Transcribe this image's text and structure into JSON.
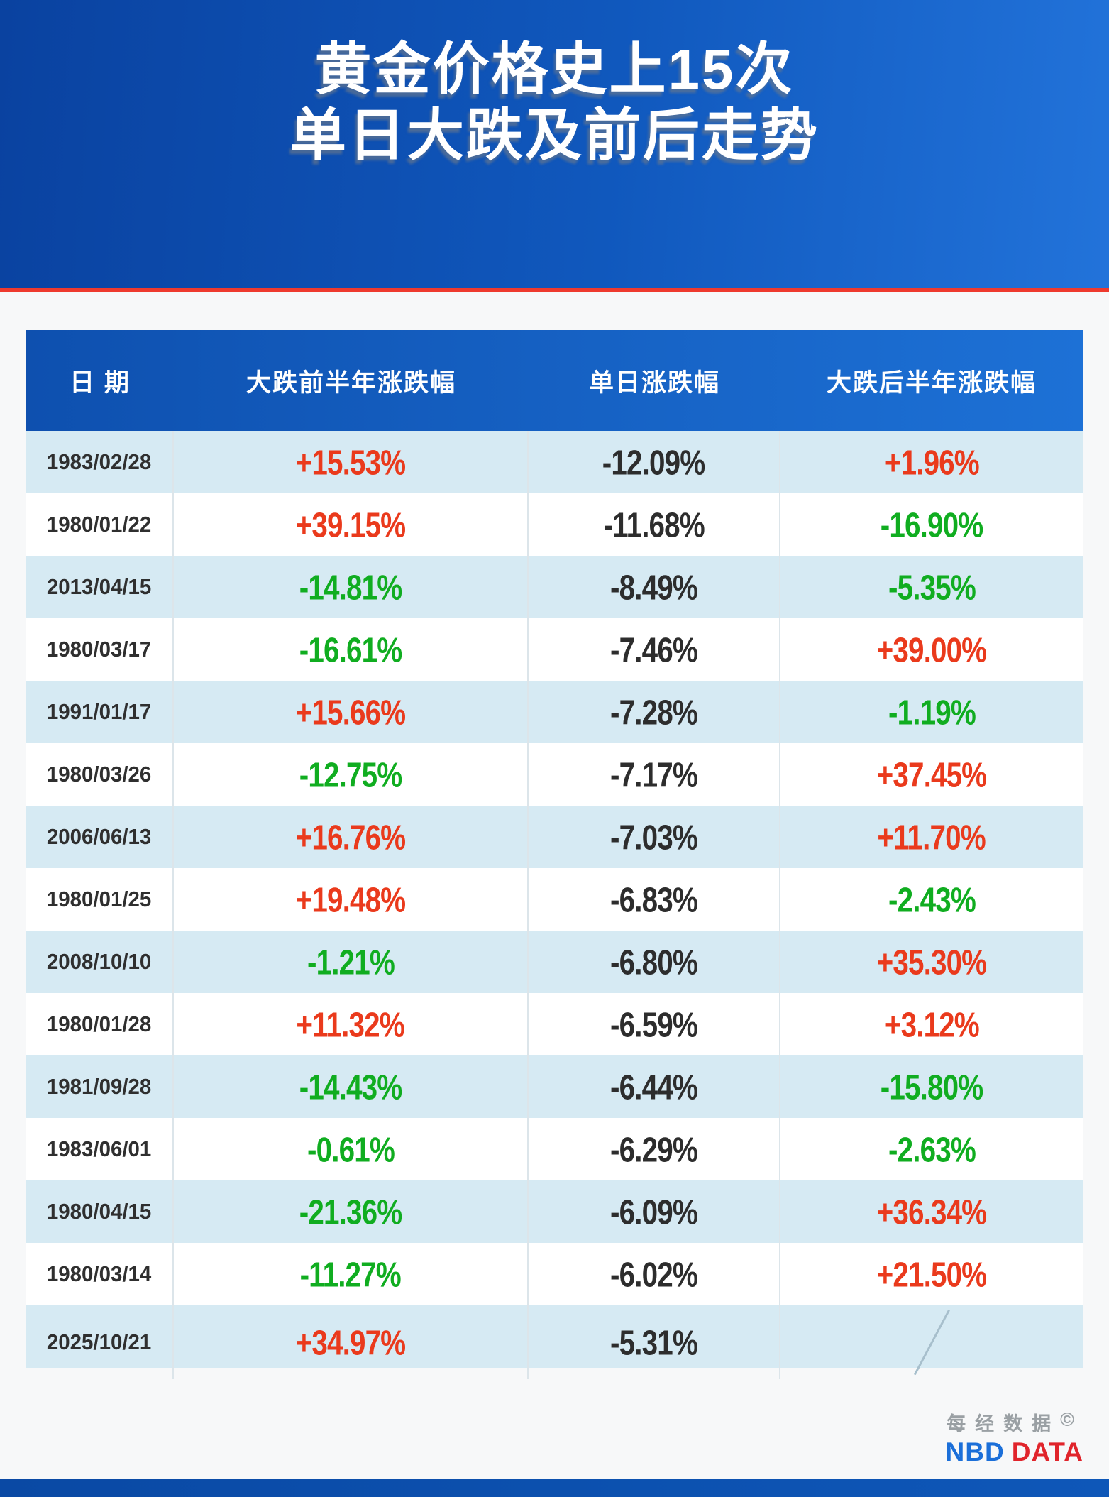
{
  "banner": {
    "title_line1": "黄金价格史上15次",
    "title_line2": "单日大跌及前后走势"
  },
  "chart_data": {
    "type": "table",
    "title": "黄金价格史上15次单日大跌及前后走势",
    "columns": [
      "日 期",
      "大跌前半年涨跌幅",
      "单日涨跌幅",
      "大跌后半年涨跌幅"
    ],
    "rows": [
      [
        "1983/02/28",
        "+15.53%",
        "-12.09%",
        "+1.96%"
      ],
      [
        "1980/01/22",
        "+39.15%",
        "-11.68%",
        "-16.90%"
      ],
      [
        "2013/04/15",
        "-14.81%",
        "-8.49%",
        "-5.35%"
      ],
      [
        "1980/03/17",
        "-16.61%",
        "-7.46%",
        "+39.00%"
      ],
      [
        "1991/01/17",
        "+15.66%",
        "-7.28%",
        "-1.19%"
      ],
      [
        "1980/03/26",
        "-12.75%",
        "-7.17%",
        "+37.45%"
      ],
      [
        "2006/06/13",
        "+16.76%",
        "-7.03%",
        "+11.70%"
      ],
      [
        "1980/01/25",
        "+19.48%",
        "-6.83%",
        "-2.43%"
      ],
      [
        "2008/10/10",
        "-1.21%",
        "-6.80%",
        "+35.30%"
      ],
      [
        "1980/01/28",
        "+11.32%",
        "-6.59%",
        "+3.12%"
      ],
      [
        "1981/09/28",
        "-14.43%",
        "-6.44%",
        "-15.80%"
      ],
      [
        "1983/06/01",
        "-0.61%",
        "-6.29%",
        "-2.63%"
      ],
      [
        "1980/04/15",
        "-21.36%",
        "-6.09%",
        "+36.34%"
      ],
      [
        "1980/03/14",
        "-11.27%",
        "-6.02%",
        "+21.50%"
      ],
      [
        "2025/10/21",
        "+34.97%",
        "-5.31%",
        "/"
      ]
    ],
    "legend_note": "red = rise (+), green = fall (-), dark = single-day drop, / = not yet available",
    "grid": false
  },
  "footer": {
    "brand_cn": "每经数据",
    "copyright": "©",
    "brand_en_1": "NBD",
    "brand_en_2": "DATA"
  },
  "colors": {
    "up_red": "#ea3a1c",
    "down_green": "#10ad20",
    "neutral_dark": "#2d2d2d",
    "banner_blue_left": "#0a42a0",
    "banner_blue_right": "#2273da",
    "divider_red": "#ee3a2e",
    "stripe_light_blue": "#d6eaf3",
    "header_blue_left": "#0e50af",
    "header_blue_right": "#1d71d6"
  }
}
